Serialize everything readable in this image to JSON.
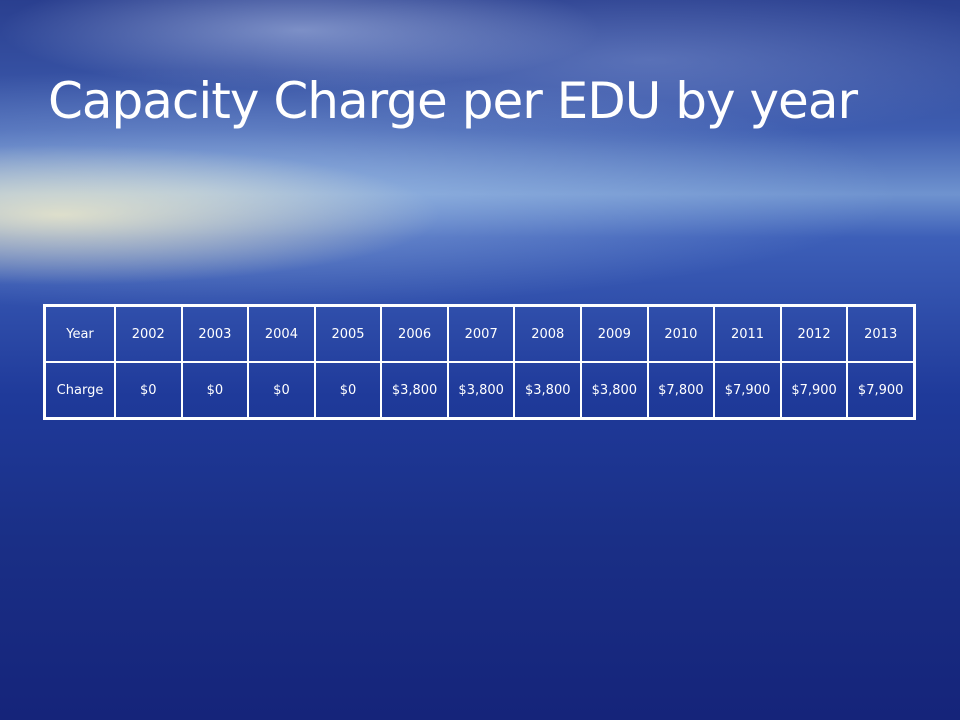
{
  "header": {
    "title": "Capacity Charge per EDU by year"
  },
  "table": {
    "rows": [
      [
        "Year",
        "2002",
        "2003",
        "2004",
        "2005",
        "2006",
        "2007",
        "2008",
        "2009",
        "2010",
        "2011",
        "2012",
        "2013"
      ],
      [
        "Charge",
        "$0",
        "$0",
        "$0",
        "$0",
        "$3,800",
        "$3,800",
        "$3,800",
        "$3,800",
        "$7,800",
        "$7,900",
        "$7,900",
        "$7,900"
      ]
    ]
  }
}
